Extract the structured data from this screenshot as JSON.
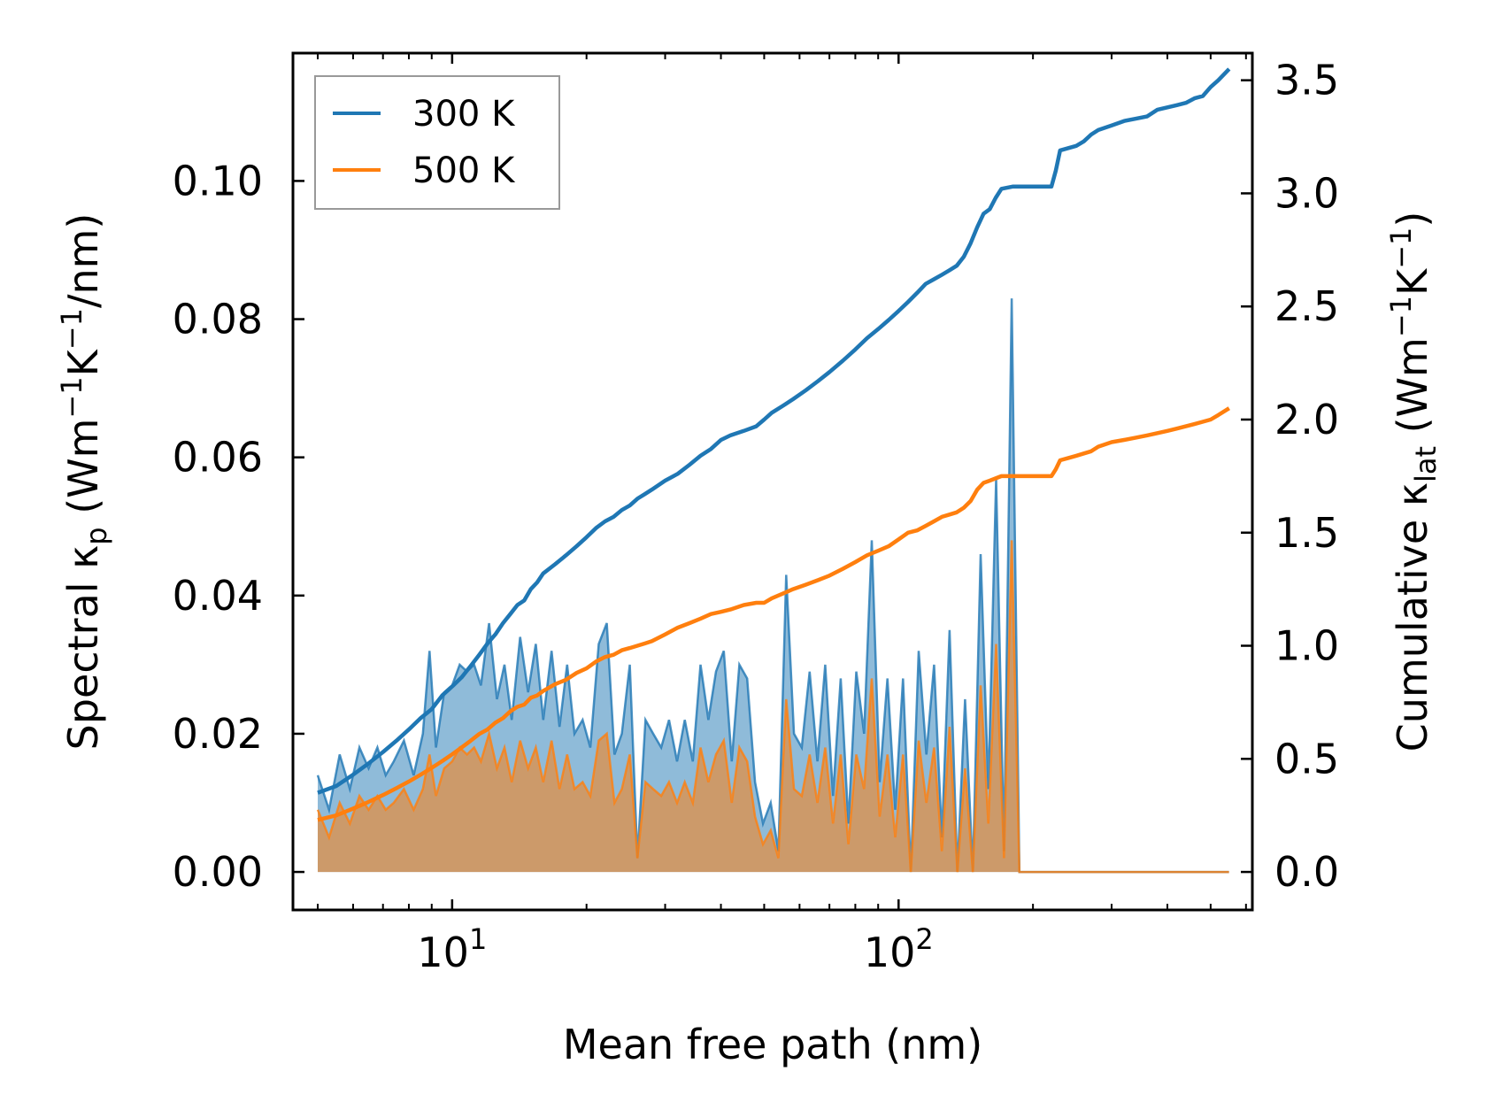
{
  "chart_data": {
    "type": "line",
    "xscale": "log",
    "xlabel": "Mean free path (nm)",
    "ylabel_left": {
      "prefix": "Spectral κ",
      "sub": "p",
      "unit": "(Wm",
      "e1": "−1",
      "mid": "K",
      "e2": "−1",
      "tail": "/nm)"
    },
    "ylabel_right": {
      "prefix": "Cumulative κ",
      "sub": "lat",
      "unit": "(Wm",
      "e1": "−1",
      "mid": "K",
      "e2": "−1",
      "tail": ")"
    },
    "xlim": [
      4.4,
      620
    ],
    "ylim_left": [
      -0.0055,
      0.1185
    ],
    "ylim_right": [
      -0.168,
      3.62
    ],
    "x_ticks": [
      {
        "value": 10,
        "base": "10",
        "exp": "1"
      },
      {
        "value": 100,
        "base": "10",
        "exp": "2"
      }
    ],
    "y_ticks_left": [
      "0.00",
      "0.02",
      "0.04",
      "0.06",
      "0.08",
      "0.10"
    ],
    "y_ticks_right": [
      "0.0",
      "0.5",
      "1.0",
      "1.5",
      "2.0",
      "2.5",
      "3.0",
      "3.5"
    ],
    "legend": [
      {
        "label": "300 K",
        "color": "#1f77b4"
      },
      {
        "label": "500 K",
        "color": "#ff7f0e"
      }
    ],
    "series": [
      {
        "name": "300 K",
        "color": "#1f77b4",
        "spectral": {
          "x": [
            5.0,
            5.3,
            5.6,
            5.9,
            6.2,
            6.5,
            6.8,
            7.1,
            7.4,
            7.8,
            8.2,
            8.6,
            8.9,
            9.2,
            9.6,
            10.0,
            10.4,
            10.8,
            11.2,
            11.6,
            12.1,
            12.6,
            13.1,
            13.6,
            14.2,
            14.8,
            15.4,
            16.0,
            16.7,
            17.4,
            18.1,
            18.8,
            19.6,
            20.4,
            21.3,
            22.2,
            23.1,
            24.0,
            25.0,
            26.0,
            27.1,
            28.2,
            29.4,
            30.6,
            31.9,
            33.2,
            34.6,
            36.0,
            37.5,
            39.0,
            40.6,
            42.3,
            44.0,
            45.8,
            47.7,
            49.7,
            51.7,
            53.8,
            56.0,
            58.3,
            60.7,
            63.2,
            65.8,
            68.5,
            71.3,
            74.2,
            77.2,
            80.4,
            83.7,
            87.1,
            90.7,
            94.4,
            98.3,
            102.3,
            106.5,
            110.9,
            115.4,
            120.1,
            125.0,
            130.1,
            135.4,
            140.9,
            146.7,
            152.7,
            158.9,
            165.4,
            172.2,
            179.2,
            186.5,
            194.1,
            202.0,
            210.3,
            218.9,
            227.8,
            237.1,
            246.8,
            256.9,
            267.4,
            278.3,
            289.7,
            301.5,
            313.8,
            326.6,
            340.0,
            353.9,
            368.3,
            383.3,
            399.0,
            415.3,
            432.3,
            450.0,
            468.4,
            487.5,
            507.4,
            528.1,
            549.7
          ],
          "y": [
            0.014,
            0.009,
            0.017,
            0.012,
            0.018,
            0.015,
            0.018,
            0.014,
            0.016,
            0.019,
            0.014,
            0.02,
            0.032,
            0.018,
            0.026,
            0.027,
            0.03,
            0.029,
            0.03,
            0.027,
            0.036,
            0.025,
            0.03,
            0.022,
            0.034,
            0.026,
            0.033,
            0.022,
            0.032,
            0.021,
            0.03,
            0.02,
            0.022,
            0.018,
            0.033,
            0.036,
            0.017,
            0.02,
            0.03,
            0.002,
            0.022,
            0.02,
            0.018,
            0.022,
            0.016,
            0.022,
            0.016,
            0.03,
            0.022,
            0.029,
            0.032,
            0.016,
            0.03,
            0.028,
            0.013,
            0.007,
            0.01,
            0.003,
            0.043,
            0.02,
            0.018,
            0.029,
            0.016,
            0.03,
            0.011,
            0.028,
            0.007,
            0.029,
            0.02,
            0.048,
            0.013,
            0.028,
            0.009,
            0.028,
            0.0,
            0.032,
            0.017,
            0.03,
            0.005,
            0.035,
            0.0,
            0.025,
            0.0,
            0.046,
            0.012,
            0.057,
            0.003,
            0.083,
            0.0,
            0.0,
            0.0,
            0.0,
            0.0,
            0.0,
            0.0,
            0.0,
            0.0,
            0.0,
            0.0,
            0.0,
            0.0,
            0.0,
            0.0,
            0.0,
            0.0,
            0.0,
            0.0,
            0.0,
            0.0,
            0.0,
            0.0,
            0.0,
            0.0,
            0.0,
            0.0,
            0.0
          ]
        },
        "cumulative": {
          "x": [
            5.0,
            5.5,
            6.0,
            6.5,
            7.0,
            7.5,
            8.0,
            8.5,
            9.0,
            9.5,
            10.0,
            10.5,
            11.0,
            11.5,
            12.0,
            12.5,
            13.0,
            13.5,
            14.0,
            14.5,
            15.0,
            15.5,
            16.0,
            17.0,
            18.0,
            19.0,
            20.0,
            21.0,
            22.0,
            23.0,
            24.0,
            25.0,
            26.0,
            27.0,
            28.0,
            30.0,
            32.0,
            34.0,
            36.0,
            38.0,
            40.0,
            42.0,
            45.0,
            48.0,
            50.0,
            52.0,
            55.0,
            58.0,
            62.0,
            66.0,
            70.0,
            75.0,
            80.0,
            85.0,
            90.0,
            95.0,
            100.0,
            105.0,
            110.0,
            115.0,
            120.0,
            125.0,
            130.0,
            135.0,
            140.0,
            145.0,
            150.0,
            155.0,
            160.0,
            165.0,
            170.0,
            180.0,
            190.0,
            200.0,
            210.0,
            220.0,
            225.0,
            230.0,
            240.0,
            250.0,
            260.0,
            270.0,
            280.0,
            300.0,
            320.0,
            340.0,
            360.0,
            380.0,
            400.0,
            420.0,
            440.0,
            460.0,
            480.0,
            500.0,
            520.0,
            550.0
          ],
          "y": [
            0.35,
            0.38,
            0.43,
            0.48,
            0.53,
            0.58,
            0.63,
            0.68,
            0.72,
            0.78,
            0.82,
            0.86,
            0.91,
            0.96,
            1.01,
            1.05,
            1.1,
            1.14,
            1.18,
            1.2,
            1.25,
            1.28,
            1.32,
            1.36,
            1.4,
            1.44,
            1.48,
            1.52,
            1.55,
            1.57,
            1.6,
            1.62,
            1.65,
            1.67,
            1.69,
            1.73,
            1.76,
            1.8,
            1.84,
            1.87,
            1.91,
            1.93,
            1.95,
            1.97,
            2.0,
            2.03,
            2.06,
            2.09,
            2.13,
            2.17,
            2.21,
            2.26,
            2.31,
            2.36,
            2.4,
            2.44,
            2.48,
            2.52,
            2.56,
            2.6,
            2.62,
            2.64,
            2.66,
            2.68,
            2.72,
            2.78,
            2.85,
            2.91,
            2.93,
            2.98,
            3.02,
            3.03,
            3.03,
            3.03,
            3.03,
            3.03,
            3.1,
            3.19,
            3.2,
            3.21,
            3.23,
            3.26,
            3.28,
            3.3,
            3.32,
            3.33,
            3.34,
            3.37,
            3.38,
            3.39,
            3.4,
            3.42,
            3.43,
            3.47,
            3.5,
            3.55
          ]
        }
      },
      {
        "name": "500 K",
        "color": "#ff7f0e",
        "spectral": {
          "x": [
            5.0,
            5.3,
            5.6,
            5.9,
            6.2,
            6.5,
            6.8,
            7.1,
            7.4,
            7.8,
            8.2,
            8.6,
            8.9,
            9.2,
            9.6,
            10.0,
            10.4,
            10.8,
            11.2,
            11.6,
            12.1,
            12.6,
            13.1,
            13.6,
            14.2,
            14.8,
            15.4,
            16.0,
            16.7,
            17.4,
            18.1,
            18.8,
            19.6,
            20.4,
            21.3,
            22.2,
            23.1,
            24.0,
            25.0,
            26.0,
            27.1,
            28.2,
            29.4,
            30.6,
            31.9,
            33.2,
            34.6,
            36.0,
            37.5,
            39.0,
            40.6,
            42.3,
            44.0,
            45.8,
            47.7,
            49.7,
            51.7,
            53.8,
            56.0,
            58.3,
            60.7,
            63.2,
            65.8,
            68.5,
            71.3,
            74.2,
            77.2,
            80.4,
            83.7,
            87.1,
            90.7,
            94.4,
            98.3,
            102.3,
            106.5,
            110.9,
            115.4,
            120.1,
            125.0,
            130.1,
            135.4,
            140.9,
            146.7,
            152.7,
            158.9,
            165.4,
            172.2,
            179.2,
            186.5,
            194.1,
            202.0,
            210.3,
            218.9,
            227.8,
            237.1,
            246.8,
            256.9,
            267.4,
            278.3,
            289.7,
            301.5,
            313.8,
            326.6,
            340.0,
            353.9,
            368.3,
            383.3,
            399.0,
            415.3,
            432.3,
            450.0,
            468.4,
            487.5,
            507.4,
            528.1,
            549.7
          ],
          "y": [
            0.009,
            0.005,
            0.01,
            0.007,
            0.011,
            0.009,
            0.011,
            0.009,
            0.01,
            0.012,
            0.009,
            0.012,
            0.017,
            0.011,
            0.015,
            0.016,
            0.018,
            0.017,
            0.018,
            0.016,
            0.02,
            0.015,
            0.018,
            0.013,
            0.019,
            0.015,
            0.018,
            0.013,
            0.019,
            0.012,
            0.017,
            0.012,
            0.013,
            0.011,
            0.019,
            0.02,
            0.01,
            0.012,
            0.017,
            0.002,
            0.013,
            0.012,
            0.011,
            0.013,
            0.01,
            0.013,
            0.01,
            0.018,
            0.013,
            0.017,
            0.019,
            0.01,
            0.018,
            0.016,
            0.008,
            0.004,
            0.006,
            0.002,
            0.025,
            0.012,
            0.011,
            0.017,
            0.01,
            0.018,
            0.007,
            0.017,
            0.004,
            0.017,
            0.012,
            0.028,
            0.008,
            0.017,
            0.005,
            0.017,
            0.0,
            0.019,
            0.01,
            0.018,
            0.003,
            0.021,
            0.0,
            0.015,
            0.0,
            0.027,
            0.007,
            0.033,
            0.002,
            0.048,
            0.0,
            0.0,
            0.0,
            0.0,
            0.0,
            0.0,
            0.0,
            0.0,
            0.0,
            0.0,
            0.0,
            0.0,
            0.0,
            0.0,
            0.0,
            0.0,
            0.0,
            0.0,
            0.0,
            0.0,
            0.0,
            0.0,
            0.0,
            0.0,
            0.0,
            0.0,
            0.0,
            0.0
          ]
        },
        "cumulative": {
          "x": [
            5.0,
            5.5,
            6.0,
            6.5,
            7.0,
            7.5,
            8.0,
            8.5,
            9.0,
            9.5,
            10.0,
            10.5,
            11.0,
            11.5,
            12.0,
            12.5,
            13.0,
            13.5,
            14.0,
            14.5,
            15.0,
            15.5,
            16.0,
            17.0,
            18.0,
            19.0,
            20.0,
            21.0,
            22.0,
            23.0,
            24.0,
            25.0,
            26.0,
            27.0,
            28.0,
            30.0,
            32.0,
            34.0,
            36.0,
            38.0,
            40.0,
            42.0,
            45.0,
            48.0,
            50.0,
            52.0,
            55.0,
            58.0,
            62.0,
            66.0,
            70.0,
            75.0,
            80.0,
            85.0,
            90.0,
            95.0,
            100.0,
            105.0,
            110.0,
            115.0,
            120.0,
            125.0,
            130.0,
            135.0,
            140.0,
            145.0,
            150.0,
            155.0,
            160.0,
            165.0,
            170.0,
            180.0,
            190.0,
            200.0,
            210.0,
            220.0,
            225.0,
            230.0,
            240.0,
            250.0,
            260.0,
            270.0,
            280.0,
            300.0,
            320.0,
            340.0,
            360.0,
            380.0,
            400.0,
            420.0,
            440.0,
            460.0,
            480.0,
            500.0,
            520.0,
            550.0
          ],
          "y": [
            0.23,
            0.25,
            0.28,
            0.31,
            0.34,
            0.37,
            0.4,
            0.43,
            0.46,
            0.49,
            0.52,
            0.55,
            0.58,
            0.61,
            0.63,
            0.66,
            0.68,
            0.71,
            0.73,
            0.74,
            0.77,
            0.78,
            0.8,
            0.83,
            0.85,
            0.88,
            0.9,
            0.93,
            0.95,
            0.96,
            0.98,
            0.99,
            1.0,
            1.01,
            1.02,
            1.05,
            1.08,
            1.1,
            1.12,
            1.14,
            1.15,
            1.16,
            1.18,
            1.19,
            1.19,
            1.21,
            1.23,
            1.25,
            1.27,
            1.29,
            1.31,
            1.34,
            1.37,
            1.4,
            1.42,
            1.44,
            1.47,
            1.5,
            1.51,
            1.53,
            1.55,
            1.57,
            1.58,
            1.59,
            1.61,
            1.64,
            1.69,
            1.72,
            1.73,
            1.74,
            1.75,
            1.75,
            1.75,
            1.75,
            1.75,
            1.75,
            1.78,
            1.82,
            1.83,
            1.84,
            1.85,
            1.86,
            1.88,
            1.9,
            1.91,
            1.92,
            1.93,
            1.94,
            1.95,
            1.96,
            1.97,
            1.98,
            1.99,
            2.0,
            2.02,
            2.05
          ]
        }
      }
    ]
  }
}
